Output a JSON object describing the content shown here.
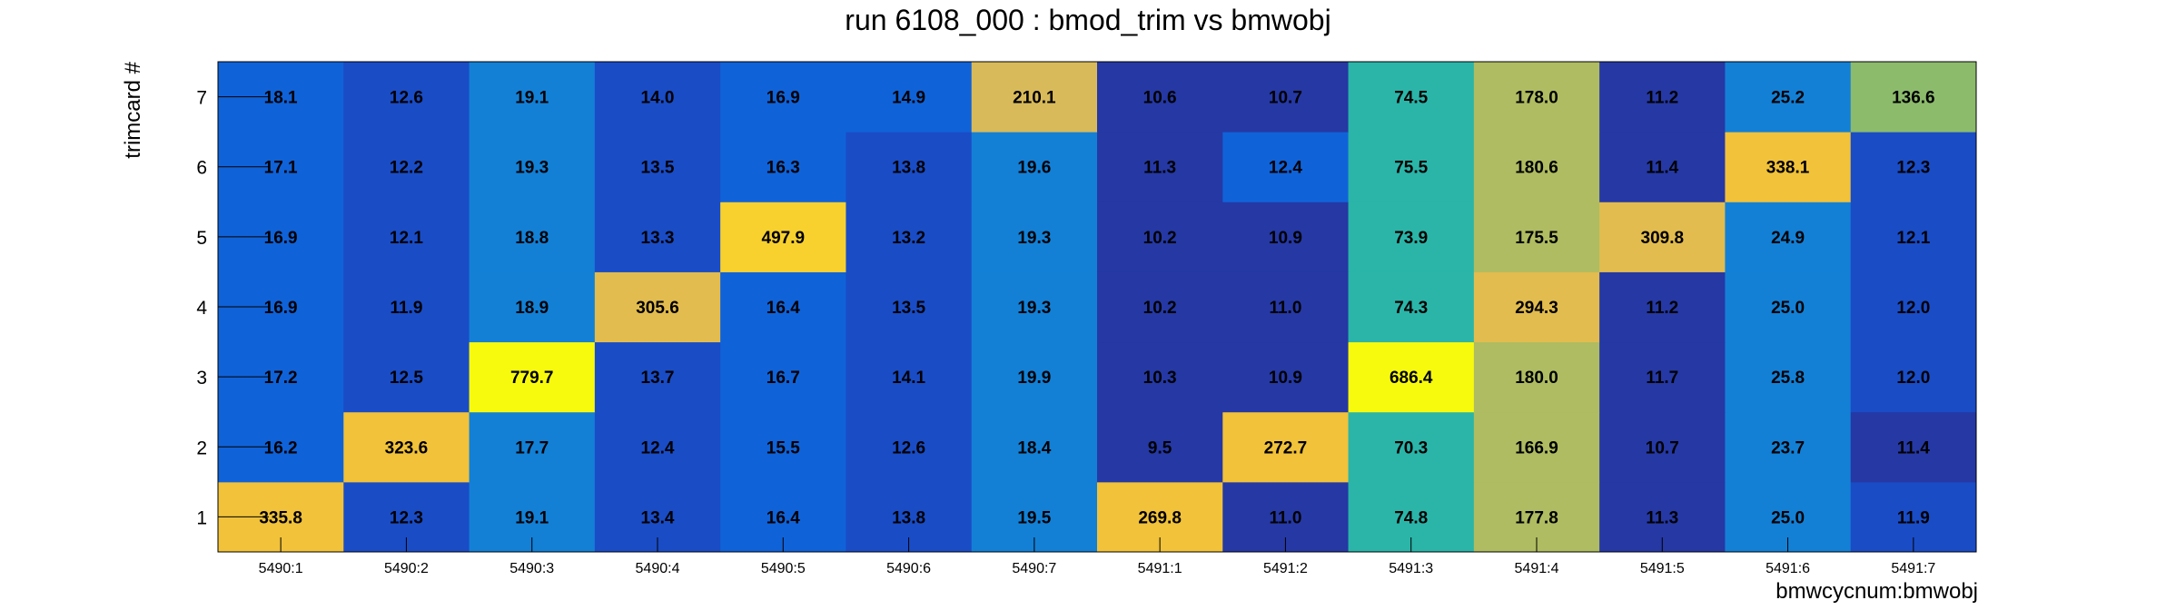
{
  "chart_data": {
    "type": "heatmap",
    "title": "run 6108_000 : bmod_trim vs bmwobj",
    "xlabel": "bmwcycnum:bmwobj",
    "ylabel": "trimcard #",
    "x_categories": [
      "5490:1",
      "5490:2",
      "5490:3",
      "5490:4",
      "5490:5",
      "5490:6",
      "5490:7",
      "5491:1",
      "5491:2",
      "5491:3",
      "5491:4",
      "5491:5",
      "5491:6",
      "5491:7"
    ],
    "y_categories": [
      "1",
      "2",
      "3",
      "4",
      "5",
      "6",
      "7"
    ],
    "values": [
      [
        335.8,
        12.3,
        19.1,
        13.4,
        16.4,
        13.8,
        19.5,
        269.8,
        11.0,
        74.8,
        177.8,
        11.3,
        25.0,
        11.9
      ],
      [
        16.2,
        323.6,
        17.7,
        12.4,
        15.5,
        12.6,
        18.4,
        9.5,
        272.7,
        70.3,
        166.9,
        10.7,
        23.7,
        11.4
      ],
      [
        17.2,
        12.5,
        779.7,
        13.7,
        16.7,
        14.1,
        19.9,
        10.3,
        10.9,
        686.4,
        180.0,
        11.7,
        25.8,
        12.0
      ],
      [
        16.9,
        11.9,
        18.9,
        305.6,
        16.4,
        13.5,
        19.3,
        10.2,
        11.0,
        74.3,
        294.3,
        11.2,
        25.0,
        12.0
      ],
      [
        16.9,
        12.1,
        18.8,
        13.3,
        497.9,
        13.2,
        19.3,
        10.2,
        10.9,
        73.9,
        175.5,
        309.8,
        24.9,
        12.1
      ],
      [
        17.1,
        12.2,
        19.3,
        13.5,
        16.3,
        13.8,
        19.6,
        11.3,
        12.4,
        75.5,
        180.6,
        11.4,
        338.1,
        12.3
      ],
      [
        18.1,
        12.6,
        19.1,
        14.0,
        16.9,
        14.9,
        210.1,
        10.6,
        10.7,
        74.5,
        178.0,
        11.2,
        25.2,
        136.6
      ]
    ],
    "cell_colors": [
      [
        "#f1c23a",
        "#1a4cc6",
        "#1380d6",
        "#1a4cc6",
        "#1062d8",
        "#1a4cc6",
        "#1380d6",
        "#f1c23a",
        "#2538a4",
        "#2bb5a9",
        "#afbc61",
        "#2538a4",
        "#1380d6",
        "#1a4cc6"
      ],
      [
        "#1062d8",
        "#f1c23a",
        "#1380d6",
        "#1a4cc6",
        "#1062d8",
        "#1a4cc6",
        "#1380d6",
        "#2538a4",
        "#f1c23a",
        "#2bb5a9",
        "#afbc61",
        "#2538a4",
        "#1380d6",
        "#2538a4"
      ],
      [
        "#1062d8",
        "#1a4cc6",
        "#f8fa0d",
        "#1a4cc6",
        "#1062d8",
        "#1a4cc6",
        "#1380d6",
        "#2538a4",
        "#2538a4",
        "#f8fa0d",
        "#afbc61",
        "#2538a4",
        "#1380d6",
        "#1a4cc6"
      ],
      [
        "#1062d8",
        "#1a4cc6",
        "#1380d6",
        "#e2bc4e",
        "#1062d8",
        "#1a4cc6",
        "#1380d6",
        "#2538a4",
        "#2538a4",
        "#2bb5a9",
        "#e2bc4e",
        "#2538a4",
        "#1380d6",
        "#1a4cc6"
      ],
      [
        "#1062d8",
        "#1a4cc6",
        "#1380d6",
        "#1a4cc6",
        "#f8d12f",
        "#1a4cc6",
        "#1380d6",
        "#2538a4",
        "#2538a4",
        "#2bb5a9",
        "#afbc61",
        "#e2bc4e",
        "#1380d6",
        "#1a4cc6"
      ],
      [
        "#1062d8",
        "#1a4cc6",
        "#1380d6",
        "#1a4cc6",
        "#1062d8",
        "#1a4cc6",
        "#1380d6",
        "#2538a4",
        "#1062d8",
        "#2bb5a9",
        "#afbc61",
        "#2538a4",
        "#f1c23a",
        "#1a4cc6"
      ],
      [
        "#1062d8",
        "#1a4cc6",
        "#1380d6",
        "#1a4cc6",
        "#1062d8",
        "#1062d8",
        "#d8ba5a",
        "#2538a4",
        "#2538a4",
        "#2bb5a9",
        "#afbc61",
        "#2538a4",
        "#1380d6",
        "#8cbb6c"
      ]
    ],
    "grid": false,
    "legend": "none"
  }
}
